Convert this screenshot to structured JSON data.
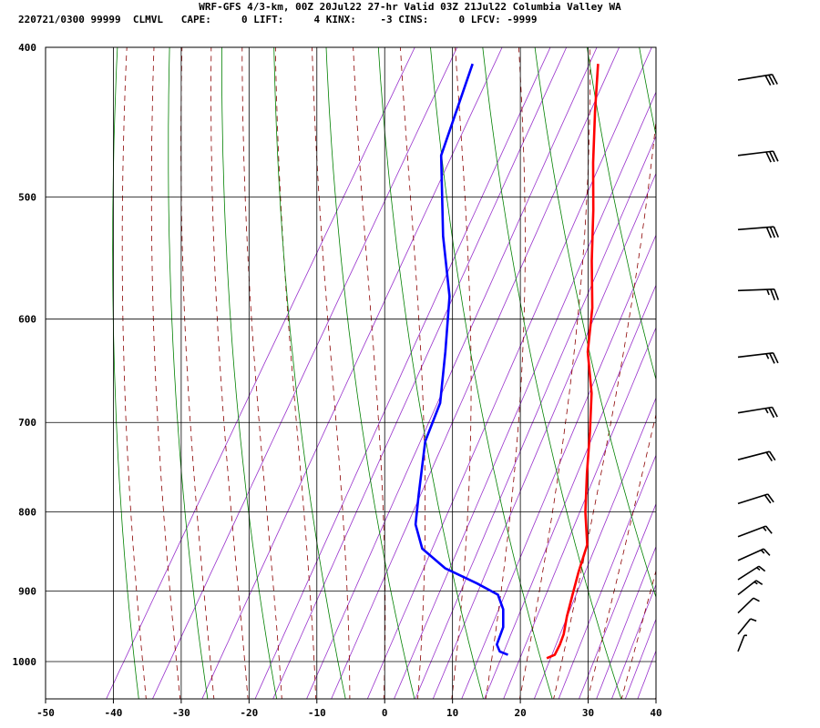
{
  "header": {
    "title": "WRF-GFS 4/3-km, 00Z 20Jul22 27-hr Valid 03Z 21Jul22 Columbia Valley WA",
    "stats": "220721/0300 99999  CLMVL   CAPE:     0 LIFT:     4 KINX:    -3 CINS:     0 LFCV: -9999"
  },
  "chart_data": {
    "type": "line",
    "title": "WRF-GFS 4/3-km, 00Z 20Jul22 27-hr Valid 03Z 21Jul22 Columbia Valley WA",
    "xlabel": "",
    "ylabel": "",
    "x_ticks": [
      -50,
      -40,
      -30,
      -20,
      -10,
      0,
      10,
      20,
      30,
      40
    ],
    "y_ticks": [
      400,
      500,
      600,
      700,
      800,
      900,
      1000
    ],
    "xlim": [
      -50,
      40
    ],
    "ylim": [
      1040,
      400
    ],
    "y_scale": "log",
    "grid": true,
    "series": [
      {
        "name": "",
        "color": "#ff0000",
        "points": [
          [
            -21.5,
            410
          ],
          [
            -18,
            440
          ],
          [
            -14,
            475
          ],
          [
            -10,
            510
          ],
          [
            -6,
            550
          ],
          [
            -2,
            590
          ],
          [
            1,
            630
          ],
          [
            5,
            670
          ],
          [
            8,
            710
          ],
          [
            11,
            755
          ],
          [
            14,
            800
          ],
          [
            17,
            840
          ],
          [
            18,
            875
          ],
          [
            19,
            905
          ],
          [
            20,
            935
          ],
          [
            21,
            960
          ],
          [
            21.3,
            975
          ],
          [
            21.4,
            990
          ],
          [
            20.5,
            995
          ]
        ]
      },
      {
        "name": "",
        "color": "#0000ff",
        "points": [
          [
            -40,
            410
          ],
          [
            -37,
            470
          ],
          [
            -30,
            530
          ],
          [
            -24,
            580
          ],
          [
            -20,
            630
          ],
          [
            -16.5,
            680
          ],
          [
            -15.5,
            720
          ],
          [
            -12,
            780
          ],
          [
            -10,
            815
          ],
          [
            -7,
            845
          ],
          [
            -2,
            870
          ],
          [
            4,
            890
          ],
          [
            8,
            905
          ],
          [
            10,
            925
          ],
          [
            11.5,
            950
          ],
          [
            12,
            975
          ],
          [
            13,
            985
          ],
          [
            14.5,
            990
          ]
        ]
      }
    ],
    "colors": {
      "temperature": "#ff0000",
      "dewpoint": "#0000ff",
      "dry_adiabats": "#008000",
      "moist_adiabats": "#8b0000",
      "mixing_ratio": "#9932cc",
      "grid": "#000000"
    },
    "wind_barbs": [
      {
        "p": 420,
        "speed_kt": 30,
        "dir_deg": 250
      },
      {
        "p": 470,
        "speed_kt": 30,
        "dir_deg": 255
      },
      {
        "p": 525,
        "speed_kt": 30,
        "dir_deg": 260
      },
      {
        "p": 575,
        "speed_kt": 25,
        "dir_deg": 265
      },
      {
        "p": 635,
        "speed_kt": 25,
        "dir_deg": 255
      },
      {
        "p": 690,
        "speed_kt": 25,
        "dir_deg": 250
      },
      {
        "p": 740,
        "speed_kt": 20,
        "dir_deg": 240
      },
      {
        "p": 790,
        "speed_kt": 20,
        "dir_deg": 235
      },
      {
        "p": 830,
        "speed_kt": 15,
        "dir_deg": 230
      },
      {
        "p": 860,
        "speed_kt": 15,
        "dir_deg": 225
      },
      {
        "p": 885,
        "speed_kt": 15,
        "dir_deg": 215
      },
      {
        "p": 905,
        "speed_kt": 15,
        "dir_deg": 210
      },
      {
        "p": 930,
        "speed_kt": 10,
        "dir_deg": 205
      },
      {
        "p": 960,
        "speed_kt": 10,
        "dir_deg": 200
      },
      {
        "p": 985,
        "speed_kt": 5,
        "dir_deg": 190
      }
    ]
  }
}
